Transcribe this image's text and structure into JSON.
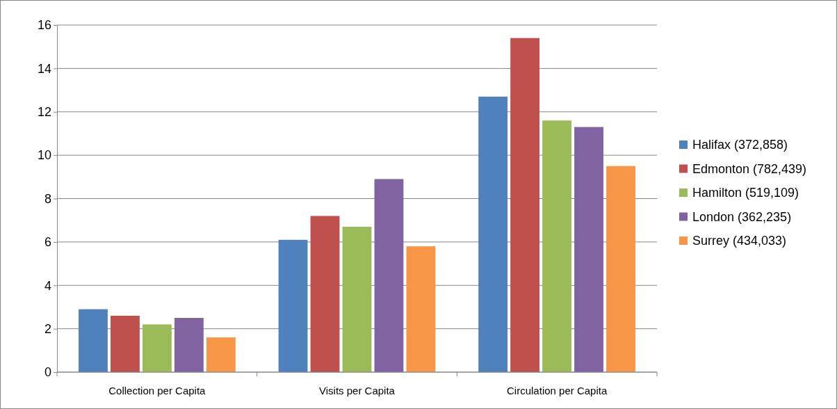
{
  "chart_data": {
    "type": "bar",
    "categories": [
      "Collection per Capita",
      "Visits per Capita",
      "Circulation per Capita"
    ],
    "series": [
      {
        "name": "Halifax (372,858)",
        "color": "#4f81bd",
        "values": [
          2.9,
          6.1,
          12.7
        ]
      },
      {
        "name": "Edmonton (782,439)",
        "color": "#c0504d",
        "values": [
          2.6,
          7.2,
          15.4
        ]
      },
      {
        "name": "Hamilton (519,109)",
        "color": "#9bbb59",
        "values": [
          2.2,
          6.7,
          11.6
        ]
      },
      {
        "name": "London (362,235)",
        "color": "#8064a2",
        "values": [
          2.5,
          8.9,
          11.3
        ]
      },
      {
        "name": "Surrey (434,033)",
        "color": "#f79646",
        "values": [
          1.6,
          5.8,
          9.5
        ]
      }
    ],
    "ylim": [
      0,
      16
    ],
    "yticks": [
      0,
      2,
      4,
      6,
      8,
      10,
      12,
      14,
      16
    ],
    "grid": "y",
    "legend": "right"
  }
}
